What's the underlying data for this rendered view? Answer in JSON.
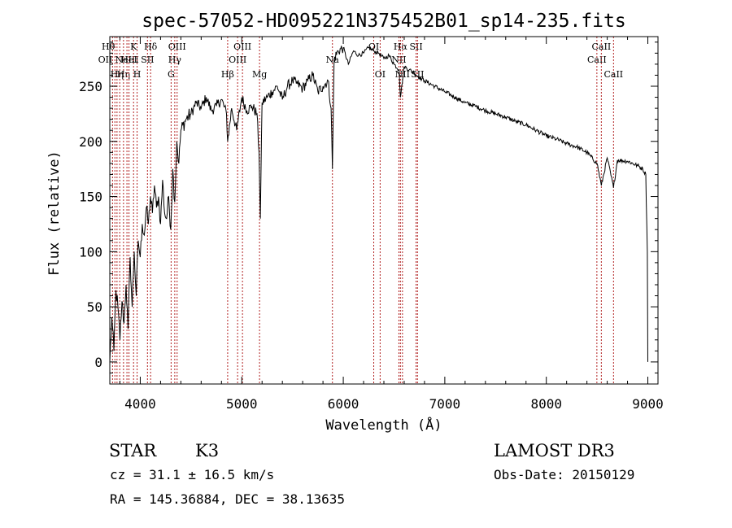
{
  "chart_data": {
    "type": "line",
    "title": "spec-57052-HD095221N375452B01_sp14-235.fits",
    "xlabel": "Wavelength (Å)",
    "ylabel": "Flux (relative)",
    "xlim": [
      3700,
      9100
    ],
    "ylim": [
      -20,
      295
    ],
    "x_ticks": [
      4000,
      5000,
      6000,
      7000,
      8000,
      9000
    ],
    "y_ticks": [
      0,
      50,
      100,
      150,
      200,
      250
    ],
    "grid": false,
    "line_color": "#000000",
    "marker_color": "#b22222",
    "series": [
      {
        "x": [
          3700,
          3720,
          3740,
          3760,
          3780,
          3800,
          3820,
          3840,
          3860,
          3880,
          3900,
          3920,
          3940,
          3960,
          3980,
          4000,
          4020,
          4040,
          4060,
          4080,
          4100,
          4120,
          4140,
          4160,
          4180,
          4200,
          4220,
          4240,
          4260,
          4280,
          4300,
          4320,
          4340,
          4360,
          4380,
          4400,
          4450,
          4500,
          4550,
          4600,
          4650,
          4700,
          4750,
          4800,
          4850,
          4861,
          4900,
          4950,
          5000,
          5050,
          5100,
          5150,
          5170,
          5183,
          5200,
          5250,
          5300,
          5350,
          5400,
          5450,
          5500,
          5550,
          5600,
          5650,
          5700,
          5750,
          5800,
          5850,
          5880,
          5893,
          5910,
          5950,
          6000,
          6050,
          6100,
          6150,
          6200,
          6250,
          6300,
          6350,
          6400,
          6450,
          6500,
          6550,
          6563,
          6600,
          6650,
          6700,
          6750,
          6800,
          6900,
          7000,
          7100,
          7200,
          7300,
          7400,
          7500,
          7600,
          7700,
          7800,
          7900,
          8000,
          8100,
          8200,
          8300,
          8400,
          8500,
          8542,
          8600,
          8662,
          8700,
          8800,
          8900,
          8950,
          8980,
          8995,
          9000
        ],
        "y": [
          0,
          40,
          10,
          65,
          50,
          20,
          55,
          35,
          70,
          30,
          95,
          50,
          100,
          60,
          110,
          95,
          125,
          115,
          140,
          125,
          150,
          135,
          160,
          140,
          150,
          125,
          165,
          135,
          130,
          150,
          120,
          175,
          145,
          200,
          180,
          210,
          220,
          225,
          235,
          230,
          240,
          228,
          232,
          238,
          225,
          200,
          230,
          210,
          240,
          228,
          232,
          225,
          190,
          130,
          235,
          240,
          245,
          250,
          238,
          250,
          255,
          252,
          248,
          255,
          260,
          245,
          250,
          255,
          230,
          175,
          275,
          282,
          285,
          270,
          282,
          278,
          280,
          285,
          282,
          280,
          275,
          278,
          270,
          265,
          240,
          268,
          265,
          262,
          258,
          255,
          250,
          245,
          240,
          235,
          232,
          228,
          225,
          222,
          218,
          215,
          210,
          205,
          202,
          198,
          195,
          190,
          180,
          160,
          185,
          158,
          183,
          182,
          178,
          175,
          170,
          100,
          0
        ]
      }
    ],
    "lines": [
      {
        "x": 3727,
        "label": "OII",
        "row": 1,
        "anchor": "end"
      },
      {
        "x": 3750,
        "label": "Hθ",
        "row": 0,
        "anchor": "end"
      },
      {
        "x": 3771,
        "label": "Hη",
        "row": 2,
        "anchor": "middle"
      },
      {
        "x": 3798,
        "label": "",
        "row": -1,
        "anchor": "middle"
      },
      {
        "x": 3835,
        "label": "Hη",
        "row": 2,
        "anchor": "middle"
      },
      {
        "x": 3869,
        "label": "NeIII",
        "row": 1,
        "anchor": "middle"
      },
      {
        "x": 3889,
        "label": "HeI",
        "row": 1,
        "anchor": "middle"
      },
      {
        "x": 3934,
        "label": "K",
        "row": 0,
        "anchor": "middle"
      },
      {
        "x": 3969,
        "label": "H",
        "row": 2,
        "anchor": "middle"
      },
      {
        "x": 4071,
        "label": "SII",
        "row": 1,
        "anchor": "middle"
      },
      {
        "x": 4102,
        "label": "Hδ",
        "row": 0,
        "anchor": "middle"
      },
      {
        "x": 4304,
        "label": "G",
        "row": 2,
        "anchor": "middle"
      },
      {
        "x": 4340,
        "label": "Hγ",
        "row": 1,
        "anchor": "middle"
      },
      {
        "x": 4363,
        "label": "OIII",
        "row": 0,
        "anchor": "middle"
      },
      {
        "x": 4861,
        "label": "Hβ",
        "row": 2,
        "anchor": "middle"
      },
      {
        "x": 4959,
        "label": "OIII",
        "row": 1,
        "anchor": "middle"
      },
      {
        "x": 5007,
        "label": "OIII",
        "row": 0,
        "anchor": "middle"
      },
      {
        "x": 5175,
        "label": "Mg",
        "row": 2,
        "anchor": "middle"
      },
      {
        "x": 5893,
        "label": "Na",
        "row": 1,
        "anchor": "middle"
      },
      {
        "x": 6300,
        "label": "OI",
        "row": 0,
        "anchor": "middle"
      },
      {
        "x": 6363,
        "label": "OI",
        "row": 2,
        "anchor": "middle"
      },
      {
        "x": 6548,
        "label": "NII",
        "row": 1,
        "anchor": "middle"
      },
      {
        "x": 6563,
        "label": "Hα",
        "row": 0,
        "anchor": "middle"
      },
      {
        "x": 6583,
        "label": "NII",
        "row": 2,
        "anchor": "middle"
      },
      {
        "x": 6717,
        "label": "SII",
        "row": 0,
        "anchor": "middle"
      },
      {
        "x": 6731,
        "label": "SII",
        "row": 2,
        "anchor": "middle"
      },
      {
        "x": 8498,
        "label": "CaII",
        "row": 1,
        "anchor": "middle"
      },
      {
        "x": 8542,
        "label": "CaII",
        "row": 0,
        "anchor": "middle"
      },
      {
        "x": 8662,
        "label": "CaII",
        "row": 2,
        "anchor": "middle"
      }
    ]
  },
  "footer": {
    "class_text": "STAR",
    "subclass_text": "K3",
    "cz_text": "cz = 31.1 ± 16.5 km/s",
    "radec_text": "RA = 145.36884, DEC =  38.13635",
    "survey_text": "LAMOST DR3",
    "obsdate_text": "Obs-Date: 20150129"
  }
}
